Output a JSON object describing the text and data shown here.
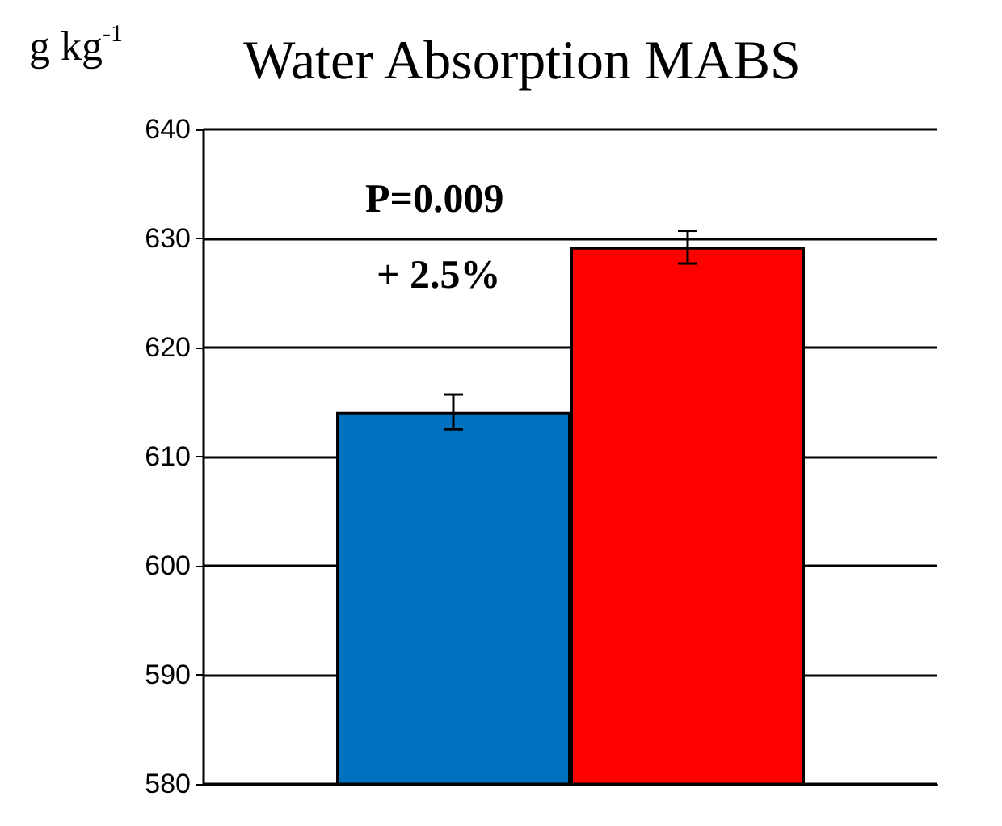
{
  "chart_data": {
    "type": "bar",
    "title": "Water Absorption MABS",
    "ylabel": "g kg$^{-1}$",
    "categories": [
      null
    ],
    "series": [
      {
        "color": "#0070c0",
        "values": [
          614.1
        ],
        "errors": [
          1.6
        ]
      },
      {
        "color": "#ff0000",
        "values": [
          629.2
        ],
        "errors": [
          1.5
        ]
      }
    ],
    "ylim": [
      580,
      640
    ],
    "yticks": [
      580,
      590,
      600,
      610,
      620,
      630,
      640
    ],
    "grid": "y",
    "annotations": [
      "P=0.009",
      "+ 2.5%"
    ]
  }
}
